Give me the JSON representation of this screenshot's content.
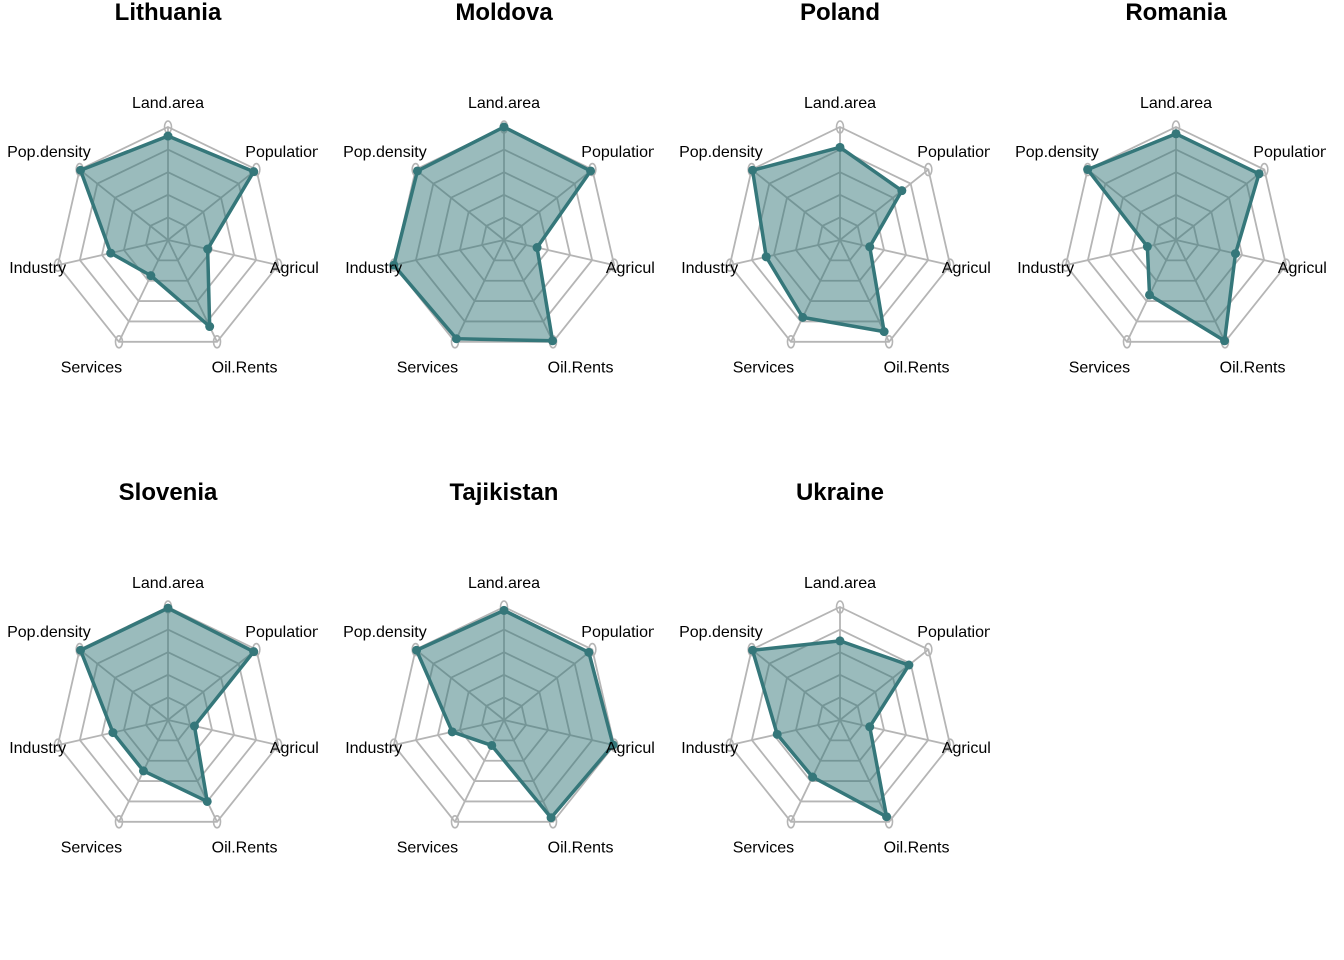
{
  "colors": {
    "series": "#35777a",
    "fill": "#35777a",
    "grid": "#b5b5b5"
  },
  "chart_data": {
    "type": "radar",
    "axes": [
      "Land.area",
      "Population",
      "Agriculture",
      "Oil.Rents",
      "Services",
      "Industry",
      "Pop.density"
    ],
    "range": [
      0,
      1
    ],
    "rings": 5,
    "grid": true,
    "panels": [
      {
        "title": "Lithuania",
        "values": [
          0.92,
          0.97,
          0.36,
          0.85,
          0.35,
          0.52,
          0.99
        ]
      },
      {
        "title": "Moldova",
        "values": [
          1.0,
          0.98,
          0.3,
          0.99,
          0.97,
          1.0,
          0.98
        ]
      },
      {
        "title": "Poland",
        "values": [
          0.82,
          0.7,
          0.27,
          0.9,
          0.76,
          0.67,
          0.99
        ]
      },
      {
        "title": "Romania",
        "values": [
          0.94,
          0.94,
          0.54,
          0.99,
          0.54,
          0.26,
          1.0
        ]
      },
      {
        "title": "Slovenia",
        "values": [
          0.99,
          0.97,
          0.24,
          0.8,
          0.5,
          0.5,
          0.99
        ]
      },
      {
        "title": "Tajikistan",
        "values": [
          0.97,
          0.96,
          0.99,
          0.96,
          0.25,
          0.47,
          0.99
        ]
      },
      {
        "title": "Ukraine",
        "values": [
          0.7,
          0.78,
          0.27,
          0.95,
          0.56,
          0.57,
          0.99
        ]
      }
    ]
  }
}
